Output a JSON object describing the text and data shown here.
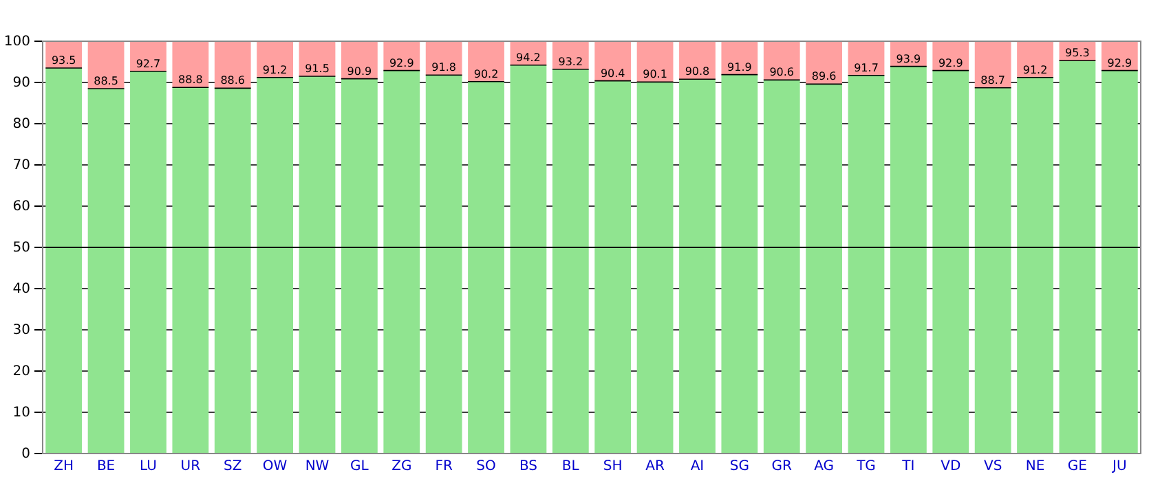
{
  "chart_data": {
    "type": "bar",
    "stacked": true,
    "categories": [
      "ZH",
      "BE",
      "LU",
      "UR",
      "SZ",
      "OW",
      "NW",
      "GL",
      "ZG",
      "FR",
      "SO",
      "BS",
      "BL",
      "SH",
      "AR",
      "AI",
      "SG",
      "GR",
      "AG",
      "TG",
      "TI",
      "VD",
      "VS",
      "NE",
      "GE",
      "JU"
    ],
    "series": [
      {
        "color": "#90e490",
        "values": [
          93.5,
          88.5,
          92.7,
          88.8,
          88.6,
          91.2,
          91.5,
          90.9,
          92.9,
          91.8,
          90.2,
          94.2,
          93.2,
          90.4,
          90.1,
          90.8,
          91.9,
          90.6,
          89.6,
          91.7,
          93.9,
          92.9,
          88.7,
          91.2,
          95.3,
          92.9
        ],
        "value_labels": [
          "93.5",
          "88.5",
          "92.7",
          "88.8",
          "88.6",
          "91.2",
          "91.5",
          "90.9",
          "92.9",
          "91.8",
          "90.2",
          "94.2",
          "93.2",
          "90.4",
          "90.1",
          "90.8",
          "91.9",
          "90.6",
          "89.6",
          "91.7",
          "93.9",
          "92.9",
          "88.7",
          "91.2",
          "95.3",
          "92.9"
        ]
      },
      {
        "color": "#ffa0a0",
        "values": [
          6.5,
          11.5,
          7.3,
          11.2,
          11.4,
          8.8,
          8.5,
          9.1,
          7.1,
          8.2,
          9.8,
          5.8,
          6.8,
          9.6,
          9.9,
          9.2,
          8.1,
          9.4,
          10.4,
          8.3,
          6.1,
          7.1,
          11.3,
          8.8,
          4.7,
          7.1
        ]
      }
    ],
    "ylim": [
      0,
      100
    ],
    "yticks": [
      0,
      10,
      20,
      30,
      40,
      50,
      60,
      70,
      80,
      90,
      100
    ],
    "grid": "y",
    "ref_lines": [
      {
        "axis": "y",
        "value": 50,
        "color": "#000000"
      }
    ]
  }
}
